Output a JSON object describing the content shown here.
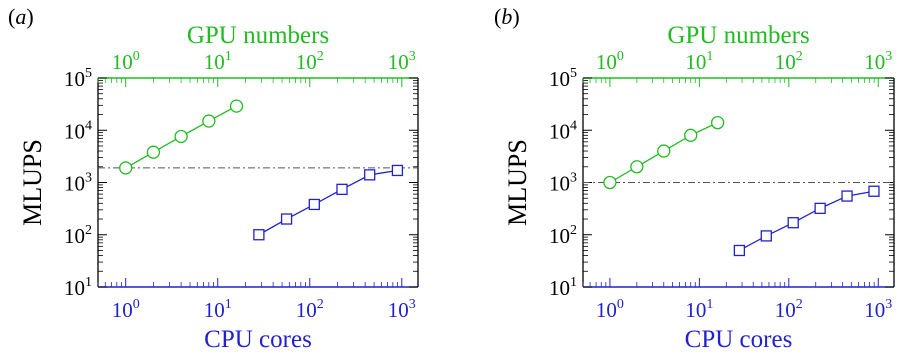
{
  "colors": {
    "gpu": "#22bb22",
    "cpu": "#2222cc",
    "axis": "#000000",
    "ref": "#555555"
  },
  "chart_data": [
    {
      "type": "scatter",
      "panel_label": "(a)",
      "xlabel": "CPU cores",
      "x2label": "GPU numbers",
      "ylabel": "MLUPS",
      "xscale": "log",
      "yscale": "log",
      "xlim": [
        0.5,
        1500
      ],
      "ylim": [
        10,
        100000
      ],
      "x2lim": [
        0.5,
        1500
      ],
      "xticks": [
        1,
        10,
        100,
        1000
      ],
      "yticks": [
        10,
        100,
        1000,
        10000,
        100000
      ],
      "reference_line_y": 1900,
      "series": [
        {
          "axis": "top",
          "marker": "circle",
          "color": "#22bb22",
          "x": [
            1,
            2,
            4,
            8,
            16
          ],
          "y": [
            1900,
            3800,
            7600,
            15000,
            29000
          ]
        },
        {
          "axis": "bottom",
          "marker": "square",
          "color": "#2222cc",
          "x": [
            28,
            56,
            112,
            224,
            448,
            896
          ],
          "y": [
            100,
            200,
            380,
            740,
            1400,
            1700
          ]
        }
      ]
    },
    {
      "type": "scatter",
      "panel_label": "(b)",
      "xlabel": "CPU cores",
      "x2label": "GPU numbers",
      "ylabel": "MLUPS",
      "xscale": "log",
      "yscale": "log",
      "xlim": [
        0.5,
        1500
      ],
      "ylim": [
        10,
        100000
      ],
      "x2lim": [
        0.5,
        1500
      ],
      "xticks": [
        1,
        10,
        100,
        1000
      ],
      "yticks": [
        10,
        100,
        1000,
        10000,
        100000
      ],
      "reference_line_y": 1000,
      "series": [
        {
          "axis": "top",
          "marker": "circle",
          "color": "#22bb22",
          "x": [
            1,
            2,
            4,
            8,
            16
          ],
          "y": [
            1000,
            2000,
            4000,
            8000,
            14000
          ]
        },
        {
          "axis": "bottom",
          "marker": "square",
          "color": "#2222cc",
          "x": [
            28,
            56,
            112,
            224,
            448,
            896
          ],
          "y": [
            50,
            95,
            170,
            320,
            550,
            680
          ]
        }
      ]
    }
  ]
}
